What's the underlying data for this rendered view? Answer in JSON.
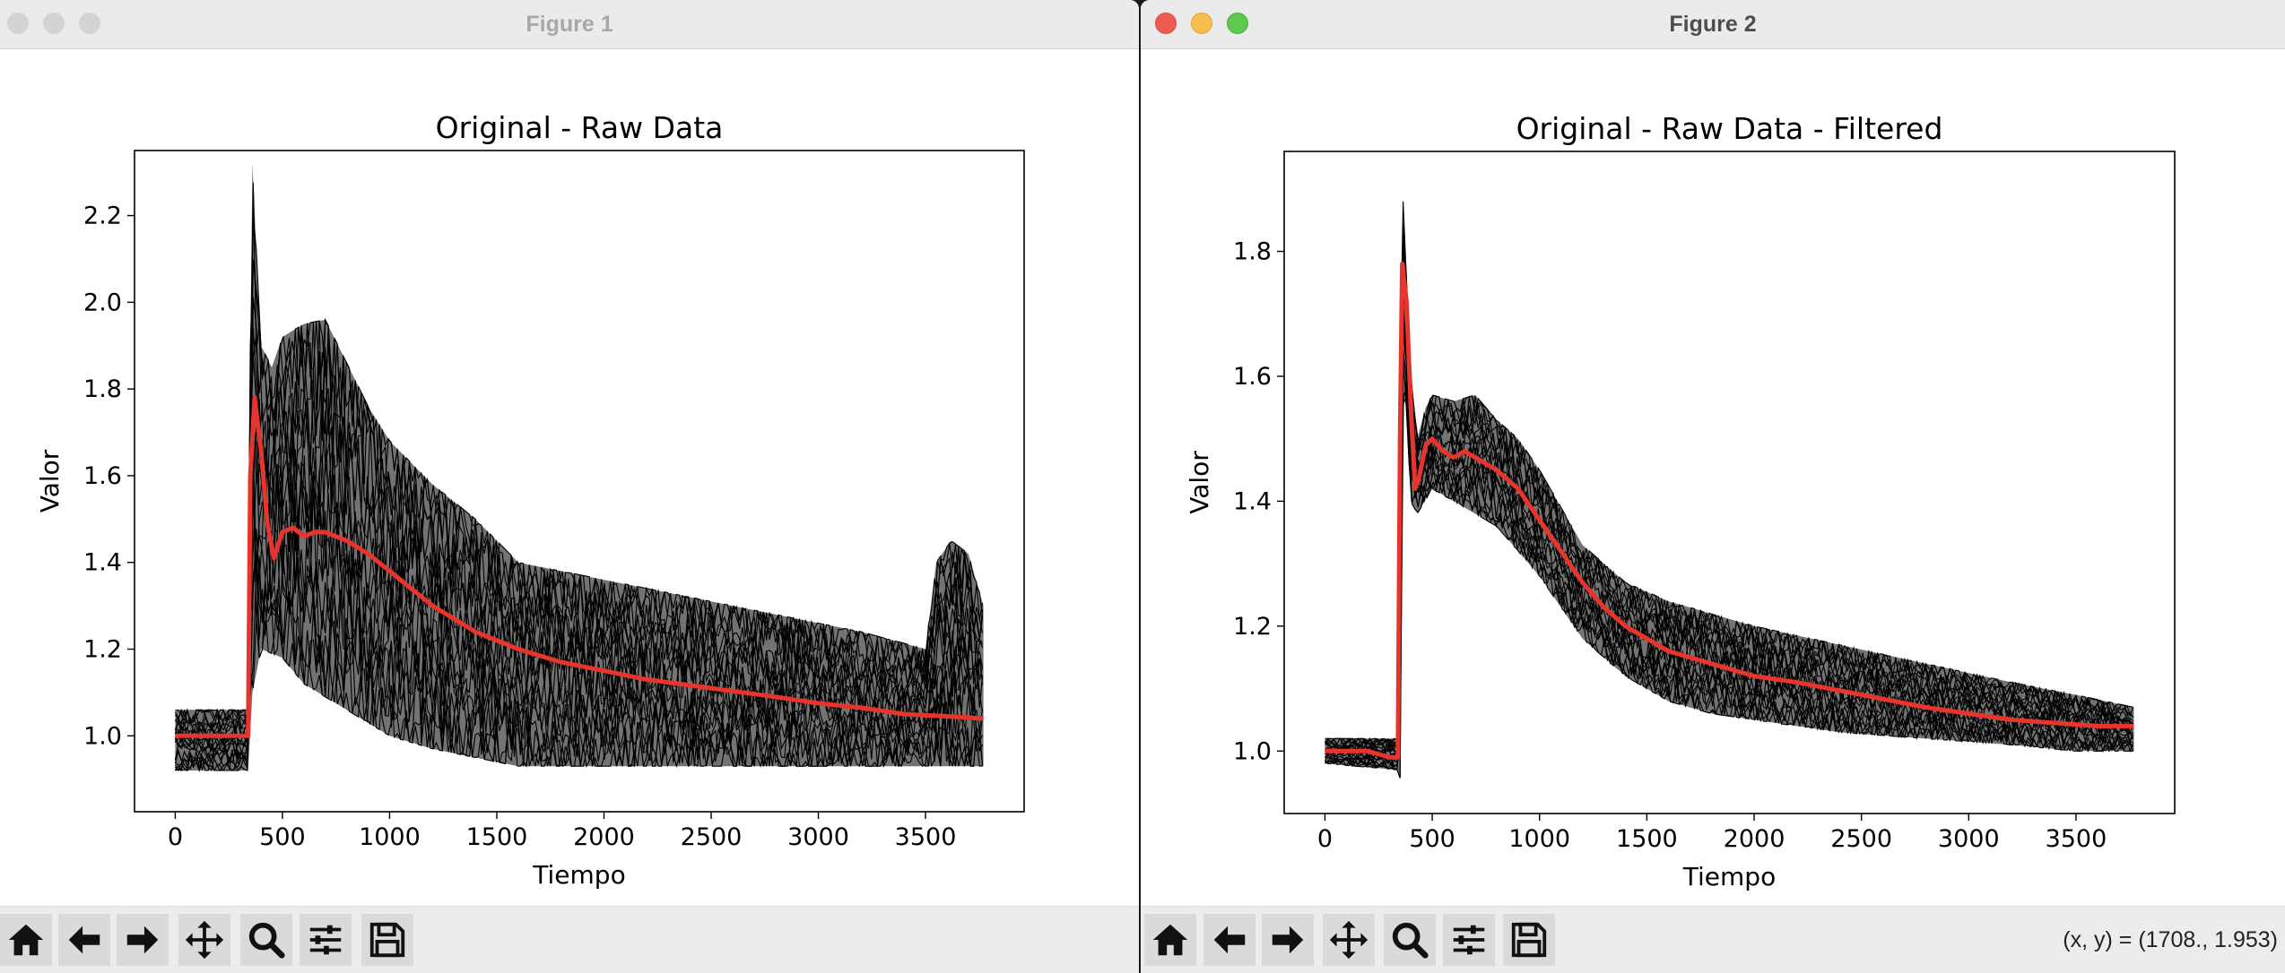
{
  "windows": [
    {
      "title": "Figure 1",
      "toolbar": {
        "coordinates": ""
      },
      "chart_data": {
        "type": "line",
        "title": "Original - Raw Data",
        "xlabel": "Tiempo",
        "ylabel": "Valor",
        "xlim": [
          -190,
          3960
        ],
        "ylim": [
          0.825,
          2.35
        ],
        "xticks": [
          0,
          500,
          1000,
          1500,
          2000,
          2500,
          3000,
          3500
        ],
        "yticks": [
          1.0,
          1.2,
          1.4,
          1.6,
          1.8,
          2.0,
          2.2
        ],
        "ytick_labels": [
          "1.0",
          "1.2",
          "1.4",
          "1.6",
          "1.8",
          "2.0",
          "2.2"
        ],
        "series": [
          {
            "role": "mean",
            "color": "#e8342c",
            "x": [
              0,
              100,
              200,
              300,
              340,
              350,
              370,
              400,
              430,
              460,
              500,
              550,
              600,
              650,
              700,
              750,
              800,
              900,
              1000,
              1100,
              1200,
              1300,
              1400,
              1500,
              1600,
              1800,
              2000,
              2200,
              2500,
              2800,
              3000,
              3200,
              3400,
              3600,
              3770
            ],
            "values": [
              1.0,
              1.0,
              1.0,
              1.0,
              1.0,
              1.6,
              1.78,
              1.66,
              1.49,
              1.41,
              1.47,
              1.48,
              1.46,
              1.47,
              1.47,
              1.46,
              1.45,
              1.42,
              1.38,
              1.34,
              1.3,
              1.27,
              1.24,
              1.22,
              1.2,
              1.17,
              1.15,
              1.13,
              1.11,
              1.09,
              1.075,
              1.065,
              1.05,
              1.045,
              1.04
            ]
          },
          {
            "role": "raw-envelope-upper",
            "color": "#000000",
            "x": [
              0,
              340,
              350,
              360,
              380,
              400,
              450,
              500,
              600,
              700,
              800,
              900,
              1000,
              1200,
              1400,
              1600,
              1800,
              2000,
              2400,
              2800,
              3200,
              3500,
              3550,
              3620,
              3700,
              3770
            ],
            "values": [
              1.06,
              1.06,
              1.9,
              2.32,
              2.1,
              1.9,
              1.85,
              1.92,
              1.95,
              1.96,
              1.86,
              1.76,
              1.68,
              1.58,
              1.5,
              1.4,
              1.38,
              1.36,
              1.32,
              1.28,
              1.24,
              1.2,
              1.4,
              1.45,
              1.42,
              1.3
            ]
          },
          {
            "role": "raw-envelope-lower",
            "color": "#000000",
            "x": [
              0,
              340,
              360,
              400,
              500,
              600,
              800,
              1000,
              1200,
              1400,
              1600,
              1800,
              2000,
              2400,
              2800,
              3200,
              3600,
              3770
            ],
            "values": [
              0.92,
              0.92,
              1.1,
              1.2,
              1.18,
              1.12,
              1.06,
              1.0,
              0.97,
              0.95,
              0.93,
              0.93,
              0.93,
              0.93,
              0.93,
              0.93,
              0.93,
              0.93
            ]
          }
        ]
      }
    },
    {
      "title": "Figure 2",
      "toolbar": {
        "coordinates": "(x, y) = (1708., 1.953)"
      },
      "chart_data": {
        "type": "line",
        "title": "Original - Raw Data - Filtered",
        "xlabel": "Tiempo",
        "ylabel": "Valor",
        "xlim": [
          -190,
          3960
        ],
        "ylim": [
          0.9,
          1.96
        ],
        "xticks": [
          0,
          500,
          1000,
          1500,
          2000,
          2500,
          3000,
          3500
        ],
        "yticks": [
          1.0,
          1.2,
          1.4,
          1.6,
          1.8
        ],
        "ytick_labels": [
          "1.0",
          "1.2",
          "1.4",
          "1.6",
          "1.8"
        ],
        "series": [
          {
            "role": "mean",
            "color": "#e8342c",
            "x": [
              0,
              100,
              200,
              300,
              340,
              350,
              360,
              380,
              400,
              420,
              440,
              470,
              500,
              550,
              600,
              650,
              700,
              750,
              800,
              900,
              1000,
              1100,
              1200,
              1300,
              1400,
              1500,
              1600,
              1800,
              2000,
              2200,
              2500,
              2800,
              3000,
              3200,
              3400,
              3600,
              3770
            ],
            "values": [
              1.0,
              1.0,
              1.0,
              0.99,
              0.99,
              1.5,
              1.78,
              1.72,
              1.55,
              1.42,
              1.44,
              1.49,
              1.5,
              1.48,
              1.47,
              1.48,
              1.47,
              1.46,
              1.45,
              1.42,
              1.37,
              1.32,
              1.27,
              1.23,
              1.2,
              1.18,
              1.16,
              1.14,
              1.12,
              1.11,
              1.09,
              1.07,
              1.06,
              1.05,
              1.045,
              1.04,
              1.04
            ]
          },
          {
            "role": "filtered-envelope-upper",
            "color": "#000000",
            "x": [
              0,
              340,
              350,
              365,
              380,
              400,
              430,
              470,
              500,
              600,
              700,
              800,
              900,
              1000,
              1200,
              1400,
              1600,
              1800,
              2000,
              2400,
              2800,
              3200,
              3500,
              3770
            ],
            "values": [
              1.02,
              1.02,
              1.6,
              1.9,
              1.75,
              1.6,
              1.5,
              1.55,
              1.57,
              1.56,
              1.57,
              1.53,
              1.5,
              1.45,
              1.33,
              1.27,
              1.24,
              1.22,
              1.2,
              1.17,
              1.14,
              1.11,
              1.09,
              1.07
            ]
          },
          {
            "role": "filtered-envelope-lower",
            "color": "#000000",
            "x": [
              0,
              340,
              355,
              365,
              380,
              400,
              430,
              500,
              600,
              800,
              1000,
              1200,
              1400,
              1600,
              1800,
              2000,
              2400,
              2800,
              3200,
              3500,
              3770
            ],
            "values": [
              0.98,
              0.97,
              0.95,
              1.6,
              1.55,
              1.4,
              1.38,
              1.42,
              1.4,
              1.36,
              1.28,
              1.18,
              1.12,
              1.08,
              1.06,
              1.05,
              1.03,
              1.02,
              1.01,
              1.0,
              1.0
            ]
          }
        ]
      }
    }
  ]
}
